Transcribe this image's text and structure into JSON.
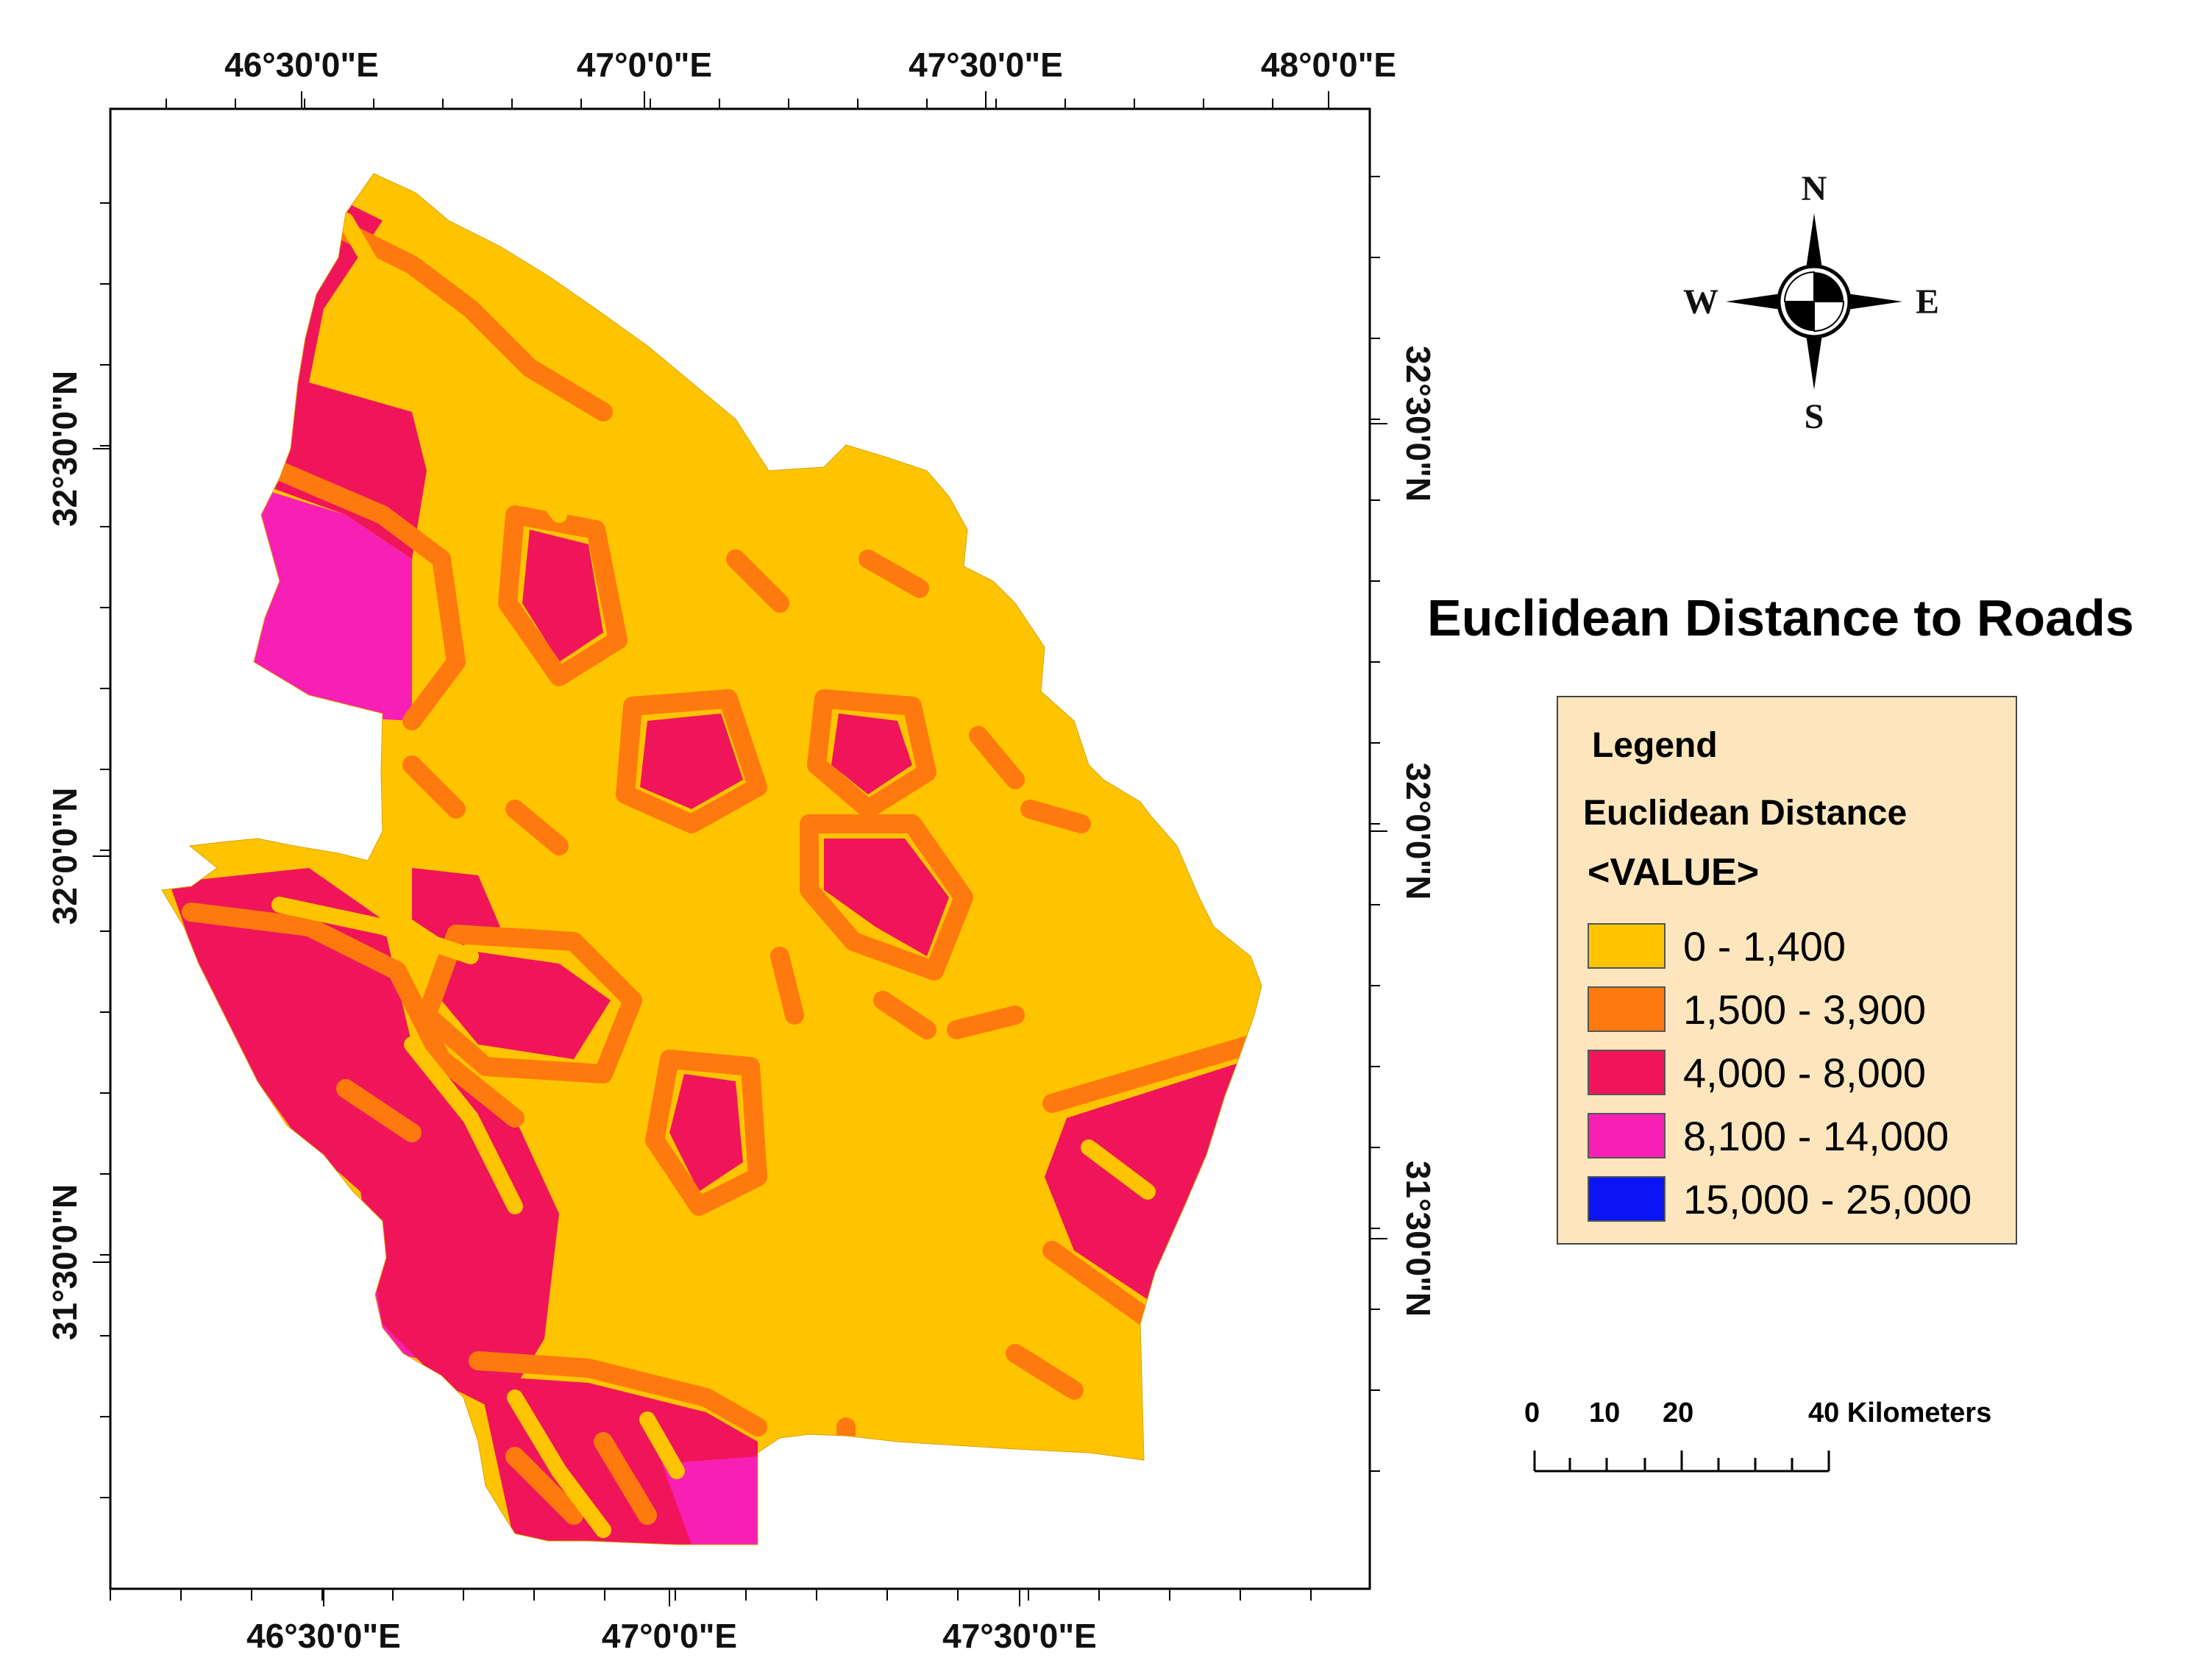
{
  "title": "Euclidean Distance to Roads",
  "coordinates": {
    "top_longitudes": [
      "46°30'0\"E",
      "47°0'0\"E",
      "47°30'0\"E",
      "48°0'0\"E"
    ],
    "bottom_longitudes": [
      "46°30'0\"E",
      "47°0'0\"E",
      "47°30'0\"E"
    ],
    "left_latitudes": [
      "32°30'0\"N",
      "32°0'0\"N",
      "31°30'0\"N"
    ],
    "right_latitudes": [
      "32°30'0\"N",
      "32°0'0\"N",
      "31°30'0\"N"
    ]
  },
  "compass": {
    "north": "N",
    "south": "S",
    "east": "E",
    "west": "W"
  },
  "legend": {
    "heading": "Legend",
    "layer": "Euclidean Distance",
    "field": "<VALUE>",
    "classes": [
      {
        "label": "0 - 1,400",
        "color": "#ffc400"
      },
      {
        "label": "1,500 - 3,900",
        "color": "#ff7a0e"
      },
      {
        "label": "4,000 - 8,000",
        "color": "#f0155a"
      },
      {
        "label": "8,100 - 14,000",
        "color": "#f81fb4"
      },
      {
        "label": "15,000 - 25,000",
        "color": "#0a14f5"
      }
    ]
  },
  "scale_bar": {
    "labels": [
      "0",
      "10",
      "20",
      "40 Kilometers"
    ]
  }
}
